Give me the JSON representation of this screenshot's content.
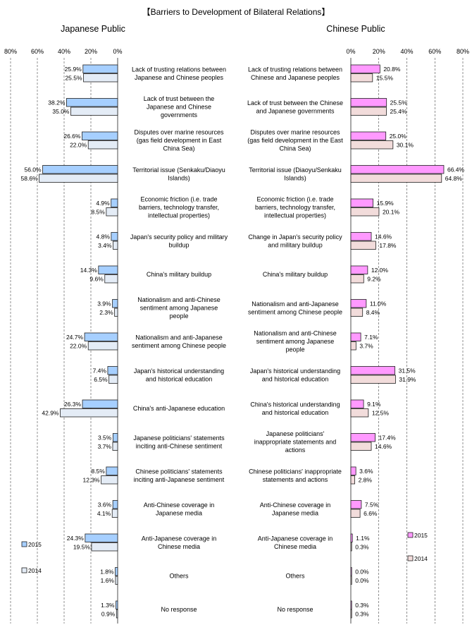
{
  "chart_data": {
    "type": "bar",
    "title": "【Barriers to Development of Bilateral Relations】",
    "colors": {
      "jp2015": "#a6cfff",
      "jp2014": "#e4ecf6",
      "cn2015": "#ff99ff",
      "cn2014": "#f2dcdb",
      "edge": "#1f1f1f",
      "grid": "#222222"
    },
    "panels": [
      {
        "side": "left",
        "title": "Japanese Public",
        "xlim": [
          0,
          80
        ],
        "axis_reversed": true,
        "ticks": [
          "80%",
          "60%",
          "40%",
          "20%",
          "0%"
        ],
        "categories": [
          "Lack of trusting relations between\nJapanese and Chinese peoples",
          "Lack of trust between the\nJapanese and Chinese\ngovernments",
          "Disputes over marine resources\n(gas field development in East\nChina Sea)",
          "Territorial issue (Senkaku/Diaoyu\nIslands)",
          "Economic friction (i.e. trade\nbarriers,  technology transfer,\nintellectual properties)",
          "Japan's security policy and military\nbuildup",
          "China's military buildup",
          "Nationalism and anti-Chinese\nsentiment among Japanese\npeople",
          "Nationalism and anti-Japanese\nsentiment among Chinese people",
          "Japan's historical understanding\nand historical education",
          "China's anti-Japanese education",
          "Japanese politicians' statements\ninciting anti-Chinese sentiment",
          "Chinese politicians' statements\ninciting anti-Japanese sentiment",
          "Anti-Chinese coverage in\nJapanese media",
          "Anti-Japanese coverage in\nChinese media",
          "Others",
          "No response"
        ],
        "series": [
          {
            "name": "2015",
            "values": [
              25.9,
              38.2,
              26.6,
              56.0,
              4.9,
              4.8,
              14.3,
              3.9,
              24.7,
              7.4,
              26.3,
              3.5,
              8.5,
              3.6,
              24.3,
              1.8,
              1.3
            ],
            "labels": [
              "25.9%",
              "38.2%",
              "26.6%",
              "56.0%",
              "4.9%",
              "4.8%",
              "14.3%",
              "3.9%",
              "24.7%",
              "7.4%",
              "26.3%",
              "3.5%",
              "8.5%",
              "3.6%",
              "24.3%",
              "1.8%",
              "1.3%"
            ]
          },
          {
            "name": "2014",
            "values": [
              25.5,
              35.0,
              22.0,
              58.6,
              8.5,
              3.4,
              9.6,
              2.3,
              22.0,
              6.5,
              42.9,
              3.7,
              12.3,
              4.1,
              19.5,
              1.6,
              0.9
            ],
            "labels": [
              "25.5%",
              "35.0%",
              "22.0%",
              "58.6%",
              "8.5%",
              "3.4%",
              "9.6%",
              "2.3%",
              "22.0%",
              "6.5%",
              "42.9%",
              "3.7%",
              "12.3%",
              "4.1%",
              "19.5%",
              "1.6%",
              "0.9%"
            ]
          }
        ],
        "legend": {
          "placement": "bottom-left",
          "entries": [
            "2015",
            "2014"
          ]
        }
      },
      {
        "side": "right",
        "title": "Chinese Public",
        "xlim": [
          0,
          80
        ],
        "axis_reversed": false,
        "ticks": [
          "0%",
          "20%",
          "40%",
          "60%",
          "80%"
        ],
        "categories": [
          "Lack of trusting relations between\nChinese and Japanese peoples",
          "Lack of trust between the Chinese\nand Japanese governments",
          "Disputes over marine resources\n(gas field development in the East\nChina Sea)",
          "Territorial issue (Diaoyu/Senkaku\nIslands)",
          "Economic friction (i.e. trade\nbarriers, technology transfer,\nintellectual properties)",
          "Change in Japan's security policy\nand military buildup",
          "China's military buildup",
          "Nationalism and anti-Japanese\nsentiment among Chinese people",
          "Nationalism and anti-Chinese\nsentiment among Japanese\npeople",
          "Japan's historical understanding\nand historical education",
          "China's historical understanding\nand historical education",
          "Japanese politicians'\ninappropriate statements and\nactions",
          "Chinese politicians'  inappropriate\nstatements and actions",
          "Anti-Chinese coverage in\nJapanese media",
          "Anti-Japanese coverage in\nChinese media",
          "Others",
          "No response"
        ],
        "series": [
          {
            "name": "2015",
            "values": [
              20.8,
              25.5,
              25.0,
              66.4,
              15.9,
              14.6,
              12.0,
              11.0,
              7.1,
              31.5,
              9.1,
              17.4,
              3.6,
              7.5,
              1.1,
              0.0,
              0.3
            ],
            "labels": [
              "20.8%",
              "25.5%",
              "25.0%",
              "66.4%",
              "15.9%",
              "14.6%",
              "12.0%",
              "11.0%",
              "7.1%",
              "31.5%",
              "9.1%",
              "17.4%",
              "3.6%",
              "7.5%",
              "1.1%",
              "0.0%",
              "0.3%"
            ]
          },
          {
            "name": "2014",
            "values": [
              15.5,
              25.4,
              30.1,
              64.8,
              20.1,
              17.8,
              9.2,
              8.4,
              3.7,
              31.9,
              12.5,
              14.6,
              2.8,
              6.6,
              0.3,
              0.0,
              0.3
            ],
            "labels": [
              "15.5%",
              "25.4%",
              "30.1%",
              "64.8%",
              "20.1%",
              "17.8%",
              "9.2%",
              "8.4%",
              "3.7%",
              "31.9%",
              "12.5%",
              "14.6%",
              "2.8%",
              "6.6%",
              "0.3%",
              "0.0%",
              "0.3%"
            ]
          }
        ],
        "legend": {
          "placement": "right, lower",
          "entries": [
            "2015",
            "2014"
          ]
        }
      }
    ]
  }
}
